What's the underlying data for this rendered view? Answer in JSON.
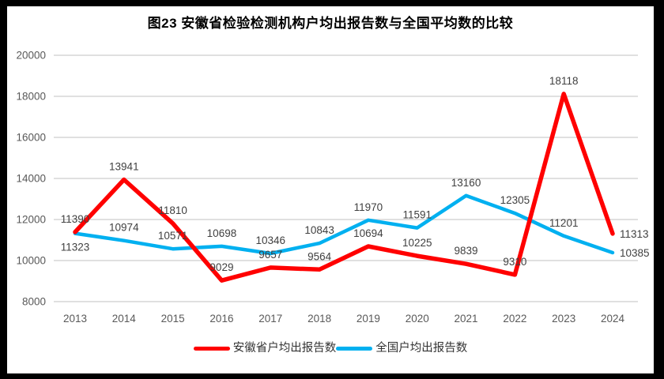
{
  "title": "图23 安徽省检验检测机构户均出报告数与全国平均数的比较",
  "colors": {
    "anhui": "#FF0000",
    "national": "#00B0F0",
    "gridline": "#E0E0E0",
    "axis_text": "#595959",
    "label_text": "#404040"
  },
  "chart_data": {
    "type": "line",
    "title": "图23 安徽省检验检测机构户均出报告数与全国平均数的比较",
    "categories": [
      "2013",
      "2014",
      "2015",
      "2016",
      "2017",
      "2018",
      "2019",
      "2020",
      "2021",
      "2022",
      "2023",
      "2024"
    ],
    "series": [
      {
        "key": "anhui",
        "name": "安徽省户均出报告数",
        "color_key": "anhui",
        "values": [
          11390,
          13941,
          11810,
          9029,
          9657,
          9564,
          10694,
          10225,
          9839,
          9310,
          18118,
          11313
        ]
      },
      {
        "key": "national",
        "name": "全国户均出报告数",
        "color_key": "national",
        "values": [
          11323,
          10974,
          10571,
          10698,
          10346,
          10843,
          11970,
          11591,
          13160,
          12305,
          11201,
          10385
        ]
      }
    ],
    "ylim": [
      8000,
      20000
    ],
    "yticks": [
      8000,
      10000,
      12000,
      14000,
      16000,
      18000,
      20000
    ],
    "xlabel": "",
    "ylabel": "",
    "grid": true,
    "data_labels": true,
    "legend_position": "bottom"
  }
}
